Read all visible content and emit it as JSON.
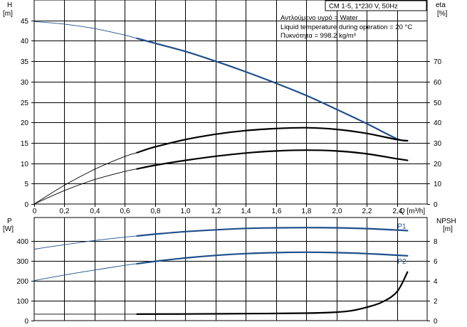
{
  "header": {
    "model": "CM 1-5, 1*230 V, 50Hz"
  },
  "info": {
    "lines": [
      "Αντλούμενο υγρό = Water",
      "Liquid temperature during operation = 20 °C",
      "Πυκνότητα = 998.2 kg/m³"
    ]
  },
  "axes": {
    "h_label": "H",
    "h_unit": "[m]",
    "eta_label": "eta",
    "eta_unit": "[%]",
    "q_label": "Q [m³/h]",
    "p_label": "P",
    "p_unit": "[W]",
    "npsh_label": "NPSH",
    "npsh_unit": "[m]"
  },
  "chart_data": [
    {
      "type": "line",
      "panel": "upper",
      "x_label": "Q [m³/h]",
      "xlim": [
        0,
        2.6
      ],
      "x_ticks": [
        "0",
        "0,2",
        "0,4",
        "0,6",
        "0,8",
        "1,0",
        "1,2",
        "1,4",
        "1,6",
        "1,8",
        "2,0",
        "2,2",
        "2,4"
      ],
      "y_left": {
        "label": "H",
        "unit": "[m]",
        "lim": [
          0,
          50
        ],
        "ticks": [
          "0",
          "5",
          "10",
          "15",
          "20",
          "25",
          "30",
          "35",
          "40",
          "45"
        ]
      },
      "y_right": {
        "label": "eta",
        "unit": "[%]",
        "lim": [
          0,
          100
        ],
        "ticks": [
          "0",
          "10",
          "20",
          "30",
          "40",
          "50",
          "60",
          "70"
        ]
      },
      "series": [
        {
          "axis": "left",
          "color": "#1f4e8c",
          "op_range": [
            0.68,
            2.47
          ],
          "x": [
            0,
            0.2,
            0.4,
            0.6,
            0.8,
            1.0,
            1.2,
            1.4,
            1.6,
            1.8,
            2.0,
            2.2,
            2.4,
            2.47
          ],
          "y": [
            44.7,
            44.1,
            43.0,
            41.4,
            39.4,
            37.4,
            35.0,
            32.4,
            29.6,
            26.6,
            23.2,
            19.7,
            16.0,
            15.5
          ]
        },
        {
          "axis": "right",
          "color": "#000000",
          "op_range": [
            0.68,
            2.47
          ],
          "x": [
            0,
            0.2,
            0.4,
            0.6,
            0.8,
            1.0,
            1.2,
            1.4,
            1.6,
            1.8,
            2.0,
            2.2,
            2.4,
            2.47
          ],
          "y": [
            0,
            9.2,
            17.0,
            23.3,
            28.0,
            31.6,
            34.2,
            36.0,
            37.0,
            37.4,
            36.6,
            34.6,
            31.6,
            31.0
          ]
        },
        {
          "axis": "right",
          "color": "#000000",
          "op_range": [
            0.68,
            2.47
          ],
          "x": [
            0,
            0.2,
            0.4,
            0.6,
            0.8,
            1.0,
            1.2,
            1.4,
            1.6,
            1.8,
            2.0,
            2.2,
            2.4,
            2.47
          ],
          "y": [
            0,
            6.6,
            12.0,
            16.0,
            19.0,
            21.4,
            23.4,
            25.0,
            26.0,
            26.4,
            26.0,
            24.6,
            22.2,
            21.4
          ]
        }
      ]
    },
    {
      "type": "line",
      "panel": "lower",
      "xlim": [
        0,
        2.6
      ],
      "y_left": {
        "label": "P",
        "unit": "[W]",
        "lim": [
          0,
          520
        ],
        "ticks": [
          "0",
          "100",
          "200",
          "300",
          "400"
        ]
      },
      "y_right": {
        "label": "NPSH",
        "unit": "[m]",
        "lim": [
          0,
          10.4
        ],
        "ticks": [
          "0",
          "2",
          "4",
          "6",
          "8"
        ]
      },
      "series": [
        {
          "name": "P1",
          "axis": "left",
          "color": "#1f4e8c",
          "op_range": [
            0.68,
            2.47
          ],
          "x": [
            0,
            0.2,
            0.4,
            0.6,
            0.8,
            1.0,
            1.2,
            1.4,
            1.6,
            1.8,
            2.0,
            2.2,
            2.4,
            2.47
          ],
          "y": [
            360,
            383,
            404,
            421,
            436,
            449,
            458,
            465,
            468,
            469,
            468,
            464,
            457,
            454
          ]
        },
        {
          "name": "P2",
          "axis": "left",
          "color": "#1f4e8c",
          "op_range": [
            0.68,
            2.47
          ],
          "x": [
            0,
            0.2,
            0.4,
            0.6,
            0.8,
            1.0,
            1.2,
            1.4,
            1.6,
            1.8,
            2.0,
            2.2,
            2.4,
            2.47
          ],
          "y": [
            202,
            230,
            255,
            279,
            299,
            316,
            329,
            338,
            343,
            345,
            343,
            338,
            330,
            327
          ]
        },
        {
          "axis": "right",
          "color": "#000000",
          "op_range": [
            0.68,
            2.47
          ],
          "x": [
            0,
            0.68,
            1.0,
            1.4,
            1.8,
            2.0,
            2.1,
            2.2,
            2.3,
            2.4,
            2.47
          ],
          "y": [
            0.65,
            0.65,
            0.67,
            0.7,
            0.75,
            0.85,
            1.0,
            1.35,
            1.85,
            2.9,
            4.9
          ]
        }
      ]
    }
  ]
}
